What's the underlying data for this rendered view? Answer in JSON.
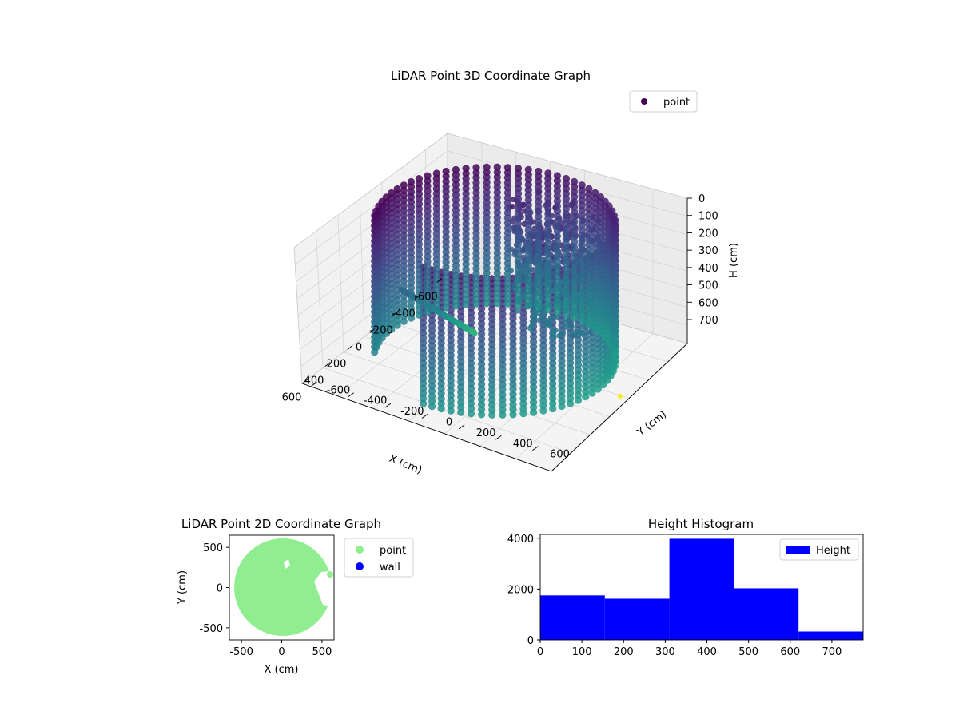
{
  "chart_data": [
    {
      "type": "scatter",
      "subtype": "3d",
      "title": "LiDAR Point 3D Coordinate Graph",
      "xlabel": "X (cm)",
      "ylabel": "Y (cm)",
      "zlabel": "H (cm)",
      "xlim": [
        -650,
        650
      ],
      "ylim": [
        -650,
        650
      ],
      "zlim": [
        0,
        780
      ],
      "z_inverted": true,
      "x_ticks": [
        "-600",
        "-400",
        "-200",
        "0",
        "200",
        "400",
        "600"
      ],
      "y_ticks": [
        "-600",
        "-400",
        "-200",
        "0",
        "200",
        "400",
        "600"
      ],
      "z_ticks": [
        "0",
        "100",
        "200",
        "300",
        "400",
        "500",
        "600",
        "700"
      ],
      "grid": true,
      "colormap": "viridis",
      "legend": {
        "placement": "top-right",
        "entries": [
          {
            "label": "point",
            "color": "#440154"
          }
        ]
      },
      "point_cloud": {
        "shape": "cylindrical wall of vertical point columns with an opening toward +x/-y, plus interior structures",
        "wall_radius_cm": 560,
        "height_range_cm": [
          0,
          760
        ]
      }
    },
    {
      "type": "scatter",
      "title": "LiDAR Point 2D Coordinate Graph",
      "xlabel": "X (cm)",
      "ylabel": "Y (cm)",
      "xlim": [
        -650,
        650
      ],
      "ylim": [
        -650,
        650
      ],
      "x_ticks": [
        "-500",
        "0",
        "500"
      ],
      "y_ticks": [
        "-500",
        "0",
        "500"
      ],
      "legend": {
        "placement": "outside-right",
        "entries": [
          {
            "label": "point",
            "color": "#90ee90"
          },
          {
            "label": "wall",
            "color": "#0000ff"
          }
        ]
      },
      "footprint": "near-circular disk of radius ~590 cm with an open notch toward +x"
    },
    {
      "type": "bar",
      "subtype": "histogram",
      "title": "Height Histogram",
      "xlim": [
        0,
        775
      ],
      "ylim": [
        0,
        4150
      ],
      "x_ticks": [
        "0",
        "100",
        "200",
        "300",
        "400",
        "500",
        "600",
        "700"
      ],
      "y_ticks": [
        "0",
        "2000",
        "4000"
      ],
      "color": "#0000ff",
      "legend": {
        "placement": "top-right",
        "entries": [
          {
            "label": "Height",
            "color": "#0000ff"
          }
        ]
      },
      "bins": [
        {
          "start": 0,
          "end": 155,
          "count": 1750
        },
        {
          "start": 155,
          "end": 310,
          "count": 1620
        },
        {
          "start": 310,
          "end": 465,
          "count": 3980
        },
        {
          "start": 465,
          "end": 620,
          "count": 2030
        },
        {
          "start": 620,
          "end": 775,
          "count": 330
        }
      ]
    }
  ]
}
